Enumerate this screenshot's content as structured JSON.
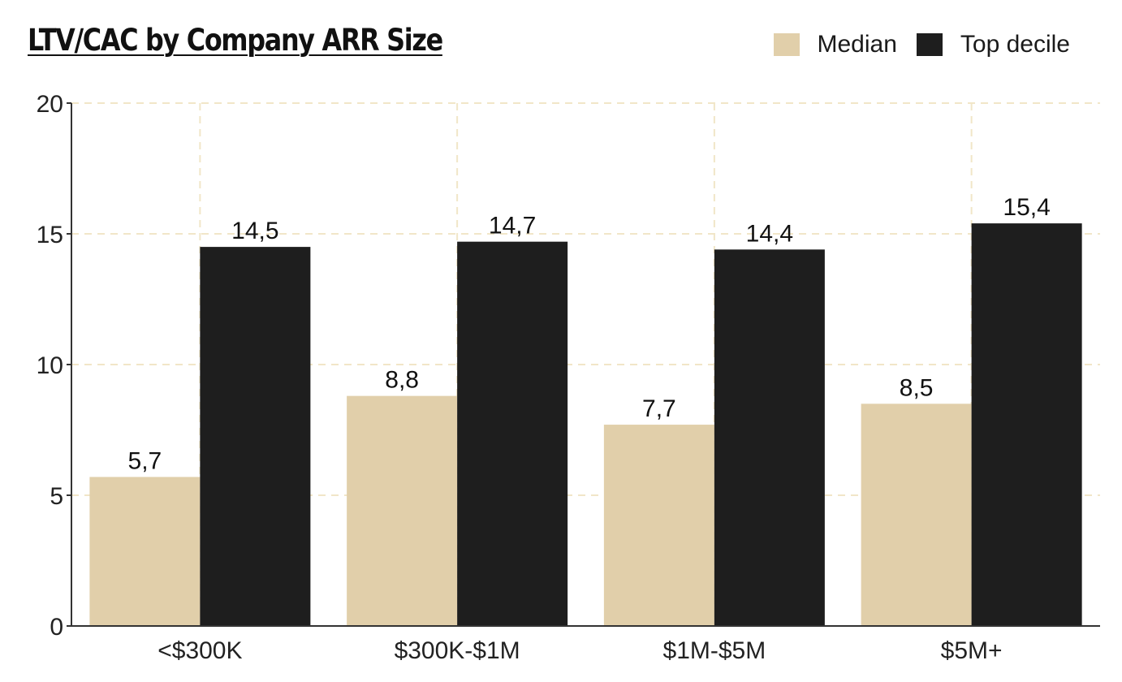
{
  "chart_data": {
    "type": "bar",
    "title": "LTV/CAC by Company ARR Size",
    "xlabel": "",
    "ylabel": "",
    "categories": [
      "<$300K",
      "$300K-$1M",
      "$1M-$5M",
      "$5M+"
    ],
    "series": [
      {
        "name": "Median",
        "color": "#e1cfaa",
        "values": [
          5.7,
          8.8,
          7.7,
          8.5
        ],
        "labels": [
          "5,7",
          "8,8",
          "7,7",
          "8,5"
        ]
      },
      {
        "name": "Top decile",
        "color": "#1e1e1e",
        "values": [
          14.5,
          14.7,
          14.4,
          15.4
        ],
        "labels": [
          "14,5",
          "14,7",
          "14,4",
          "15,4"
        ]
      }
    ],
    "ylim": [
      0,
      20
    ],
    "yticks": [
      0,
      5,
      10,
      15,
      20
    ],
    "grid": true,
    "grid_color": "#f1e6c8",
    "legend_position": "top-right"
  }
}
